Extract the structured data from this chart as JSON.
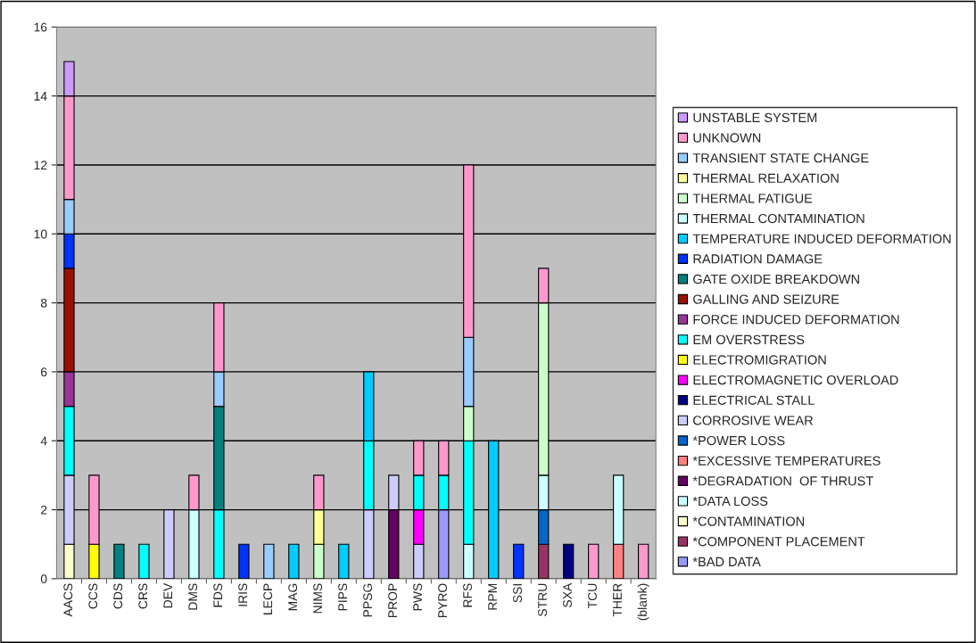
{
  "chart_data": {
    "type": "bar",
    "stacked": true,
    "categories": [
      "AACS",
      "CCS",
      "CDS",
      "CRS",
      "DEV",
      "DMS",
      "FDS",
      "IRIS",
      "LECP",
      "MAG",
      "NIMS",
      "PIPS",
      "PPSG",
      "PROP",
      "PWS",
      "PYRO",
      "RFS",
      "RPM",
      "SSI",
      "STRU",
      "SXA",
      "TCU",
      "THER",
      "(blank)"
    ],
    "ylim": [
      0,
      16
    ],
    "yticks": [
      0,
      2,
      4,
      6,
      8,
      10,
      12,
      14,
      16
    ],
    "grid": "y",
    "legend": "right",
    "series": [
      {
        "name": "*BAD DATA",
        "color": "#9999ff",
        "values": [
          null,
          null,
          null,
          null,
          null,
          null,
          null,
          null,
          null,
          null,
          null,
          null,
          null,
          null,
          null,
          2,
          null,
          null,
          null,
          null,
          null,
          null,
          null,
          null
        ]
      },
      {
        "name": "*COMPONENT PLACEMENT",
        "color": "#993366",
        "values": [
          null,
          null,
          null,
          null,
          null,
          null,
          null,
          null,
          null,
          null,
          null,
          null,
          null,
          null,
          null,
          null,
          null,
          null,
          null,
          1,
          null,
          null,
          null,
          null
        ]
      },
      {
        "name": "*CONTAMINATION",
        "color": "#ffffcc",
        "values": [
          1,
          null,
          null,
          null,
          null,
          null,
          null,
          null,
          null,
          null,
          null,
          null,
          null,
          null,
          null,
          null,
          null,
          null,
          null,
          null,
          null,
          null,
          null,
          null
        ]
      },
      {
        "name": "*DATA LOSS",
        "color": "#ccffff",
        "values": [
          null,
          null,
          null,
          null,
          null,
          null,
          null,
          null,
          null,
          null,
          null,
          null,
          null,
          null,
          null,
          null,
          1,
          null,
          null,
          null,
          null,
          null,
          null,
          null
        ]
      },
      {
        "name": "*DEGRADATION  OF THRUST",
        "color": "#660066",
        "values": [
          null,
          null,
          null,
          null,
          null,
          null,
          null,
          null,
          null,
          null,
          null,
          null,
          null,
          2,
          null,
          null,
          null,
          null,
          null,
          null,
          null,
          null,
          null,
          null
        ]
      },
      {
        "name": "*EXCESSIVE TEMPERATURES",
        "color": "#ff8080",
        "values": [
          null,
          null,
          null,
          null,
          null,
          null,
          null,
          null,
          null,
          null,
          null,
          null,
          null,
          null,
          null,
          null,
          null,
          null,
          null,
          null,
          null,
          null,
          1,
          null
        ]
      },
      {
        "name": "*POWER LOSS",
        "color": "#0066cc",
        "values": [
          null,
          null,
          null,
          null,
          null,
          null,
          null,
          null,
          null,
          null,
          null,
          null,
          null,
          null,
          null,
          null,
          null,
          null,
          null,
          1,
          null,
          null,
          null,
          null
        ]
      },
      {
        "name": "CORROSIVE WEAR",
        "color": "#ccccff",
        "values": [
          2,
          null,
          null,
          null,
          2,
          null,
          null,
          null,
          null,
          null,
          null,
          null,
          2,
          1,
          1,
          null,
          null,
          null,
          null,
          null,
          null,
          null,
          null,
          null
        ]
      },
      {
        "name": "ELECTRICAL STALL",
        "color": "#000080",
        "values": [
          null,
          null,
          null,
          null,
          null,
          null,
          null,
          null,
          null,
          null,
          null,
          null,
          null,
          null,
          null,
          null,
          null,
          null,
          null,
          null,
          1,
          null,
          null,
          null
        ]
      },
      {
        "name": "ELECTROMAGNETIC OVERLOAD",
        "color": "#ff00ff",
        "values": [
          null,
          null,
          null,
          null,
          null,
          null,
          null,
          null,
          null,
          null,
          null,
          null,
          null,
          null,
          1,
          null,
          null,
          null,
          null,
          null,
          null,
          null,
          null,
          null
        ]
      },
      {
        "name": "ELECTROMIGRATION",
        "color": "#ffff00",
        "values": [
          null,
          1,
          null,
          null,
          null,
          null,
          null,
          null,
          null,
          null,
          null,
          null,
          null,
          null,
          null,
          null,
          null,
          null,
          null,
          null,
          null,
          null,
          null,
          null
        ]
      },
      {
        "name": "EM OVERSTRESS",
        "color": "#00ffff",
        "values": [
          2,
          null,
          null,
          1,
          null,
          null,
          2,
          null,
          null,
          null,
          null,
          null,
          2,
          null,
          1,
          1,
          3,
          null,
          null,
          null,
          null,
          null,
          null,
          null
        ]
      },
      {
        "name": "FORCE INDUCED DEFORMATION",
        "color": "#993399",
        "values": [
          1,
          null,
          null,
          null,
          null,
          null,
          null,
          null,
          null,
          null,
          null,
          null,
          null,
          null,
          null,
          null,
          null,
          null,
          null,
          null,
          null,
          null,
          null,
          null
        ]
      },
      {
        "name": "GALLING AND SEIZURE",
        "color": "#991100",
        "values": [
          3,
          null,
          null,
          null,
          null,
          null,
          null,
          null,
          null,
          null,
          null,
          null,
          null,
          null,
          null,
          null,
          null,
          null,
          null,
          null,
          null,
          null,
          null,
          null
        ]
      },
      {
        "name": "GATE OXIDE BREAKDOWN",
        "color": "#008080",
        "values": [
          null,
          null,
          1,
          null,
          null,
          null,
          3,
          null,
          null,
          null,
          null,
          null,
          null,
          null,
          null,
          null,
          null,
          null,
          null,
          null,
          null,
          null,
          null,
          null
        ]
      },
      {
        "name": "RADIATION DAMAGE",
        "color": "#0033ff",
        "values": [
          1,
          null,
          null,
          null,
          null,
          null,
          null,
          1,
          null,
          null,
          null,
          null,
          null,
          null,
          null,
          null,
          null,
          null,
          1,
          null,
          null,
          null,
          null,
          null
        ]
      },
      {
        "name": "TEMPERATURE INDUCED DEFORMATION",
        "color": "#00ccff",
        "values": [
          null,
          null,
          null,
          null,
          null,
          null,
          null,
          null,
          null,
          1,
          null,
          1,
          2,
          null,
          null,
          null,
          null,
          4,
          null,
          null,
          null,
          null,
          null,
          null
        ]
      },
      {
        "name": "THERMAL CONTAMINATION",
        "color": "#ccffff",
        "values": [
          null,
          null,
          null,
          null,
          null,
          2,
          null,
          null,
          null,
          null,
          null,
          null,
          null,
          null,
          null,
          null,
          null,
          null,
          null,
          1,
          null,
          null,
          2,
          null
        ]
      },
      {
        "name": "THERMAL FATIGUE",
        "color": "#ccffcc",
        "values": [
          null,
          null,
          null,
          null,
          null,
          null,
          null,
          null,
          null,
          null,
          1,
          null,
          null,
          null,
          null,
          null,
          1,
          null,
          null,
          5,
          null,
          null,
          null,
          null
        ]
      },
      {
        "name": "THERMAL RELAXATION",
        "color": "#ffff99",
        "values": [
          null,
          null,
          null,
          null,
          null,
          null,
          null,
          null,
          null,
          null,
          1,
          null,
          null,
          null,
          null,
          null,
          null,
          null,
          null,
          null,
          null,
          null,
          null,
          null
        ]
      },
      {
        "name": "TRANSIENT STATE CHANGE",
        "color": "#99ccff",
        "values": [
          1,
          null,
          null,
          null,
          null,
          null,
          1,
          null,
          1,
          null,
          null,
          null,
          null,
          null,
          null,
          null,
          2,
          null,
          null,
          null,
          null,
          null,
          null,
          null
        ]
      },
      {
        "name": "UNKNOWN",
        "color": "#ff99cc",
        "values": [
          3,
          2,
          null,
          null,
          null,
          1,
          2,
          null,
          null,
          null,
          1,
          null,
          null,
          null,
          1,
          1,
          5,
          null,
          null,
          1,
          null,
          1,
          null,
          1
        ]
      },
      {
        "name": "UNSTABLE SYSTEM",
        "color": "#cc99ff",
        "values": [
          1,
          null,
          null,
          null,
          null,
          null,
          null,
          null,
          null,
          null,
          null,
          null,
          null,
          null,
          null,
          null,
          null,
          null,
          null,
          null,
          null,
          null,
          null,
          null
        ]
      }
    ]
  }
}
